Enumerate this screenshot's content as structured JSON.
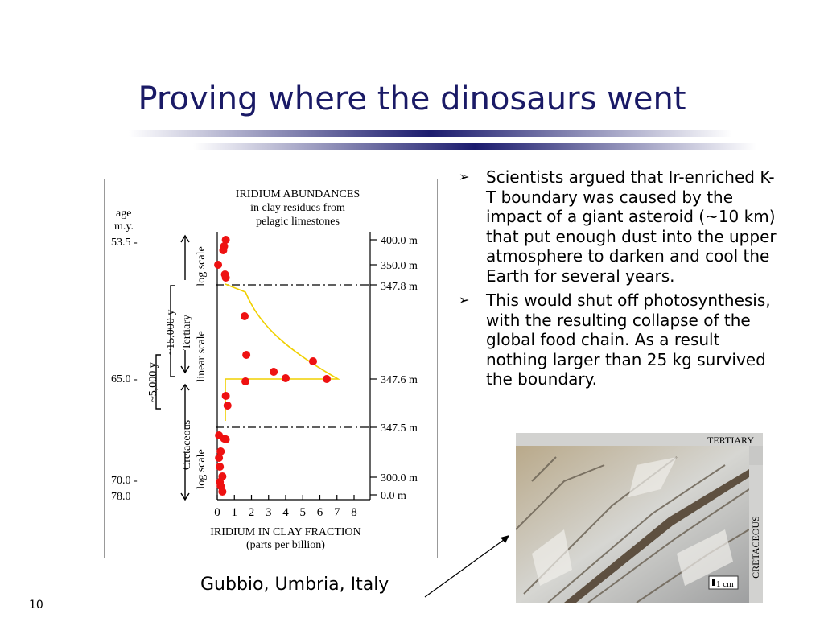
{
  "slide": {
    "title": "Proving where the dinosaurs went",
    "page_number": "10",
    "caption": "Gubbio, Umbria, Italy",
    "colors": {
      "title": "#1a1a66",
      "rule": "#1b1b6e",
      "points": "#ee1111",
      "curve": "#f0d000"
    }
  },
  "bullets": [
    {
      "icon": "arrow-bullet-icon",
      "text": "Scientists argued that  Ir-enriched K-T boundary was caused by the impact of a giant asteroid (~10 km) that put enough dust into the upper atmosphere to darken and cool the Earth for several years."
    },
    {
      "icon": "arrow-bullet-icon",
      "text": "This would shut off photosynthesis, with the resulting collapse of the global food chain. As a result nothing larger than 25 kg survived the boundary."
    }
  ],
  "figure": {
    "title_lines": [
      "IRIDIUM ABUNDANCES",
      "in clay residues from",
      "pelagic limestones"
    ],
    "age_label_lines": [
      "age",
      "m.y."
    ],
    "ages": [
      "53.5 -",
      "65.0 -",
      "70.0 -",
      "78.0"
    ],
    "depth_labels": [
      "400.0 m",
      "350.0 m",
      "347.8 m",
      "347.6 m",
      "347.5 m",
      "300.0 m",
      "0.0 m"
    ],
    "scale_labels": {
      "log_upper": "log scale",
      "linear": "linear scale",
      "log_lower": "log scale"
    },
    "period_labels": {
      "tertiary": "Tertiary",
      "cretaceous": "Cretaceous"
    },
    "duration_labels": {
      "long": "~15,000 y",
      "short": "~5,000 y"
    },
    "x_ticks": [
      "0",
      "1",
      "2",
      "3",
      "4",
      "5",
      "6",
      "7",
      "8"
    ],
    "x_label": "IRIDIUM IN CLAY FRACTION",
    "x_sublabel": "(parts per billion)",
    "iridium_ppb": [
      0.5,
      0.4,
      0.35,
      0.05,
      0.45,
      0.5,
      1.6,
      1.7,
      5.6,
      3.3,
      4.0,
      6.4,
      1.65,
      0.5,
      0.6,
      0.1,
      0.4,
      0.5,
      0.2,
      0.1,
      0.15,
      0.3,
      0.15,
      0.2,
      0.3
    ]
  },
  "photo": {
    "top_label": "TERTIARY",
    "side_label": "CRETACEOUS",
    "scale_label": "1 cm"
  }
}
